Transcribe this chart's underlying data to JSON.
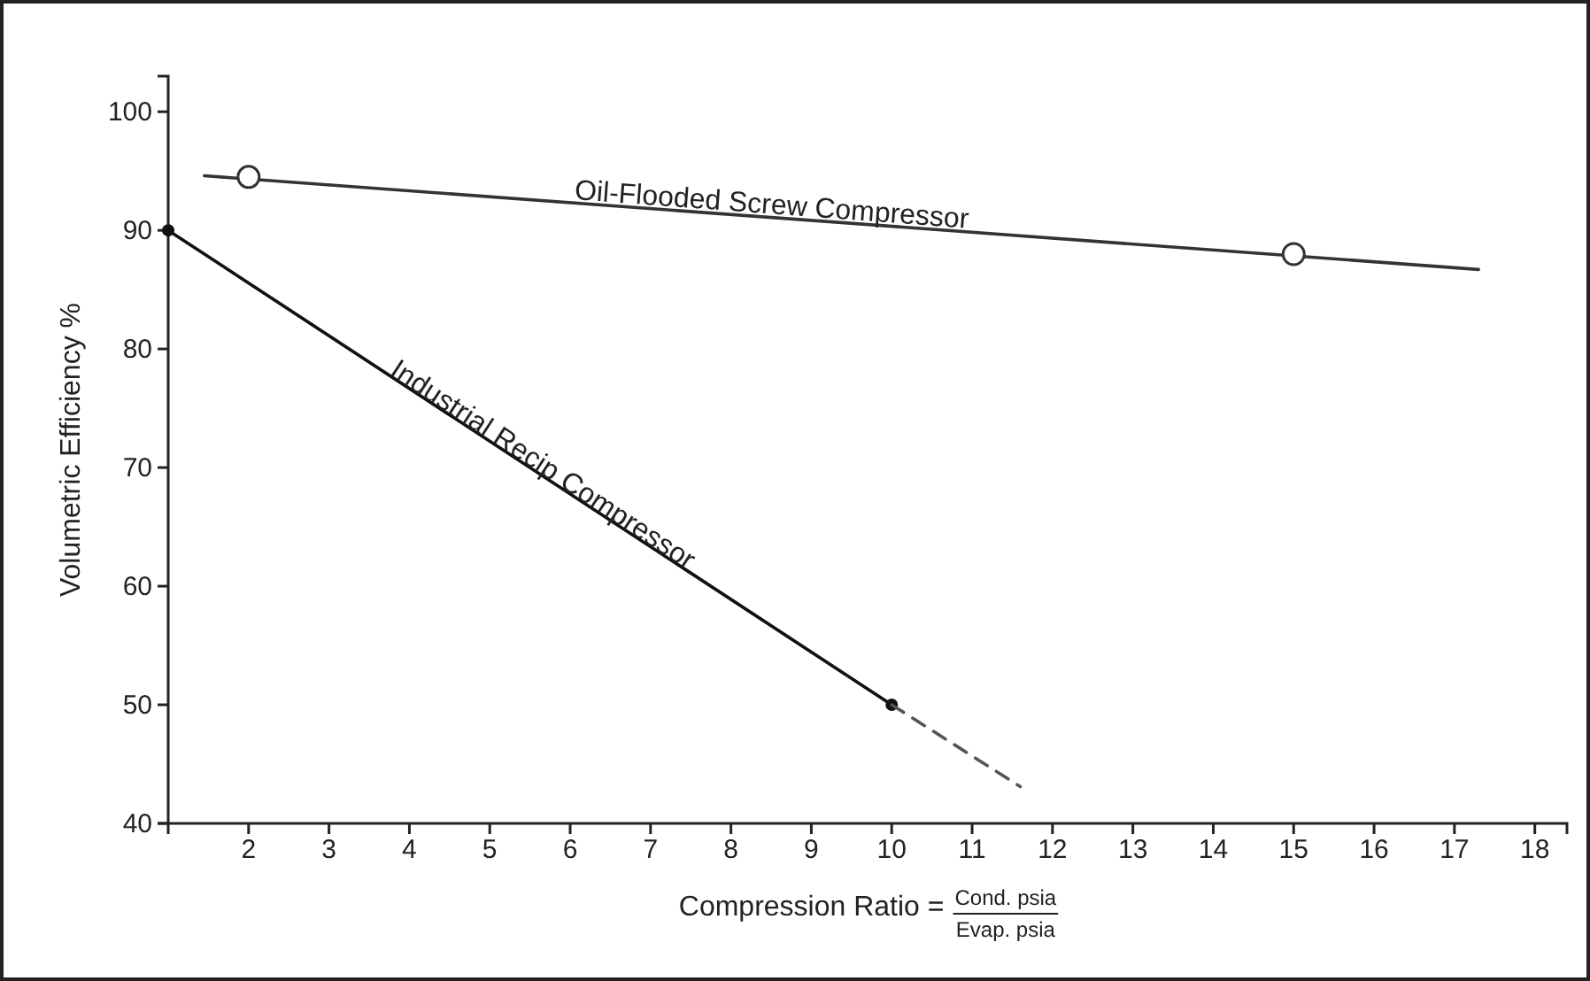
{
  "chart_data": {
    "type": "line",
    "xlabel": "Compression Ratio =",
    "ylabel": "Volumetric Efficiency %",
    "xlim": [
      1,
      18.4
    ],
    "ylim": [
      40,
      103
    ],
    "xticks": [
      2,
      3,
      4,
      5,
      6,
      7,
      8,
      9,
      10,
      11,
      12,
      13,
      14,
      15,
      16,
      17,
      18
    ],
    "yticks": [
      40,
      50,
      60,
      70,
      80,
      90,
      100
    ],
    "grid": false,
    "series": [
      {
        "color": "#333333",
        "x": [
          1.45,
          17.3
        ],
        "values": [
          94.6,
          86.7
        ],
        "marker": "none",
        "line_style": "solid"
      },
      {
        "type": "scatter",
        "color": "#333333",
        "x": [
          2,
          15
        ],
        "values": [
          94.5,
          88
        ],
        "marker": "circle"
      },
      {
        "type": "line",
        "color": "#111111",
        "x": [
          1,
          10
        ],
        "values": [
          90,
          50
        ],
        "marker": "circle",
        "line_style": "solid"
      },
      {
        "type": "line",
        "color": "#555555",
        "x": [
          10,
          11.6
        ],
        "values": [
          50,
          43.1
        ],
        "marker": "none",
        "line_style": "dashed"
      }
    ],
    "annotations": [
      {
        "text": "Oil-Flooded Screw Compressor",
        "x": 8.5,
        "y": 91.4
      },
      {
        "text": "Industrial Recip Compressor",
        "x": 5.6,
        "y": 69.6
      },
      "Cond. psia",
      "Evap. psia"
    ]
  }
}
